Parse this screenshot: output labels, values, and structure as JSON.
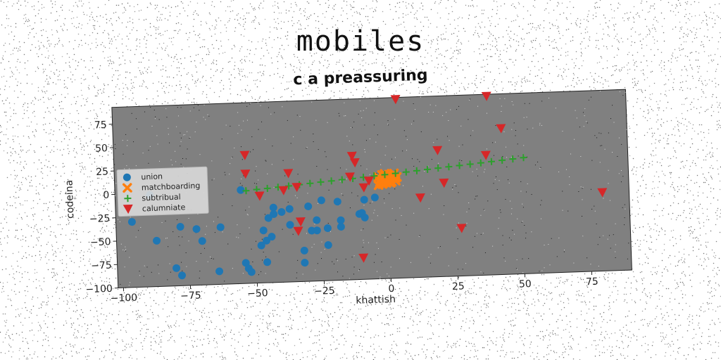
{
  "title": "mobiles",
  "subtitle": "c a preassuring",
  "chart_data": {
    "type": "scatter",
    "xlabel": "khattish",
    "ylabel": "codeina",
    "xlim": [
      -102,
      90
    ],
    "ylim": [
      -100,
      93
    ],
    "xticks": [
      -100,
      -75,
      -50,
      -25,
      0,
      25,
      50,
      75
    ],
    "yticks": [
      -100,
      -75,
      -50,
      -25,
      0,
      25,
      50,
      75
    ],
    "background": "#808080",
    "legend_position": "center-left",
    "series": [
      {
        "name": "union",
        "marker": "circle",
        "color": "#1f77b4",
        "x": [
          -96,
          -89,
          -87,
          -80,
          -78,
          -78,
          -72,
          -70,
          -64,
          -63,
          -55,
          -54,
          -53,
          -52,
          -48,
          -47,
          -46,
          -46,
          -45,
          -44,
          -43,
          -43,
          -40,
          -37,
          -37,
          -32,
          -32,
          -30,
          -29,
          -27,
          -27,
          -25,
          -23,
          -23,
          -19,
          -18,
          -18,
          -11,
          -10,
          -9,
          -9,
          -5,
          -3,
          -2,
          -1
        ],
        "y": [
          -30,
          -2,
          -51,
          -81,
          -89,
          -37,
          -40,
          -53,
          -86,
          -39,
          0,
          -78,
          -84,
          -88,
          -60,
          -44,
          -78,
          -55,
          -31,
          -51,
          -20,
          -27,
          -25,
          -22,
          -39,
          -80,
          -67,
          -20,
          -46,
          -35,
          -46,
          -14,
          -44,
          -62,
          -16,
          -36,
          -43,
          -30,
          -29,
          -34,
          -15,
          -13,
          3,
          12,
          7
        ]
      },
      {
        "name": "matchboarding",
        "marker": "x",
        "color": "#ff7f0e",
        "x": [
          -3.5,
          -3,
          -2.5,
          -2,
          -1.5,
          -1,
          -0.5,
          0,
          0.5,
          1,
          1.5,
          2,
          2.5,
          3,
          3.5,
          -3,
          -1,
          1,
          3,
          -2,
          0,
          2,
          -3.5,
          -1.5,
          0.5,
          2.5
        ],
        "y": [
          9,
          3,
          6,
          11,
          4,
          8,
          2,
          10,
          5,
          7,
          3,
          9,
          6,
          4,
          8,
          6,
          12,
          2,
          7,
          1,
          5,
          11,
          0,
          9,
          3,
          12
        ]
      },
      {
        "name": "subtribual",
        "marker": "plus",
        "color": "#2ca02c",
        "x": [
          -53,
          -49,
          -45,
          -41,
          -37,
          -33,
          -29,
          -25,
          -21,
          -17,
          -13,
          -9,
          -5,
          -1,
          3,
          7,
          11,
          15,
          19,
          23,
          27,
          31,
          35,
          39,
          43,
          47,
          51
        ],
        "y": [
          -1,
          0,
          0.7,
          1.6,
          2.5,
          3.5,
          4.5,
          5.5,
          6.3,
          7.2,
          8,
          9,
          10,
          11,
          12,
          13,
          14,
          15,
          16,
          17,
          18,
          19,
          20,
          21,
          22,
          23,
          24
        ]
      },
      {
        "name": "calumniate",
        "marker": "triangle_down",
        "color": "#d62728",
        "x": [
          4,
          38,
          43,
          -53,
          -53,
          -48,
          -37,
          -39,
          -34,
          -33,
          -34,
          -13,
          -12,
          -10,
          -9,
          -14,
          -7,
          12,
          19,
          21,
          27,
          37,
          80
        ],
        "y": [
          91,
          91,
          56,
          37,
          17,
          -7,
          16,
          -2,
          1,
          -36,
          -46,
          32,
          25,
          -77,
          -2,
          10,
          5,
          -15,
          35,
          0,
          -49,
          28,
          -16
        ]
      }
    ]
  }
}
